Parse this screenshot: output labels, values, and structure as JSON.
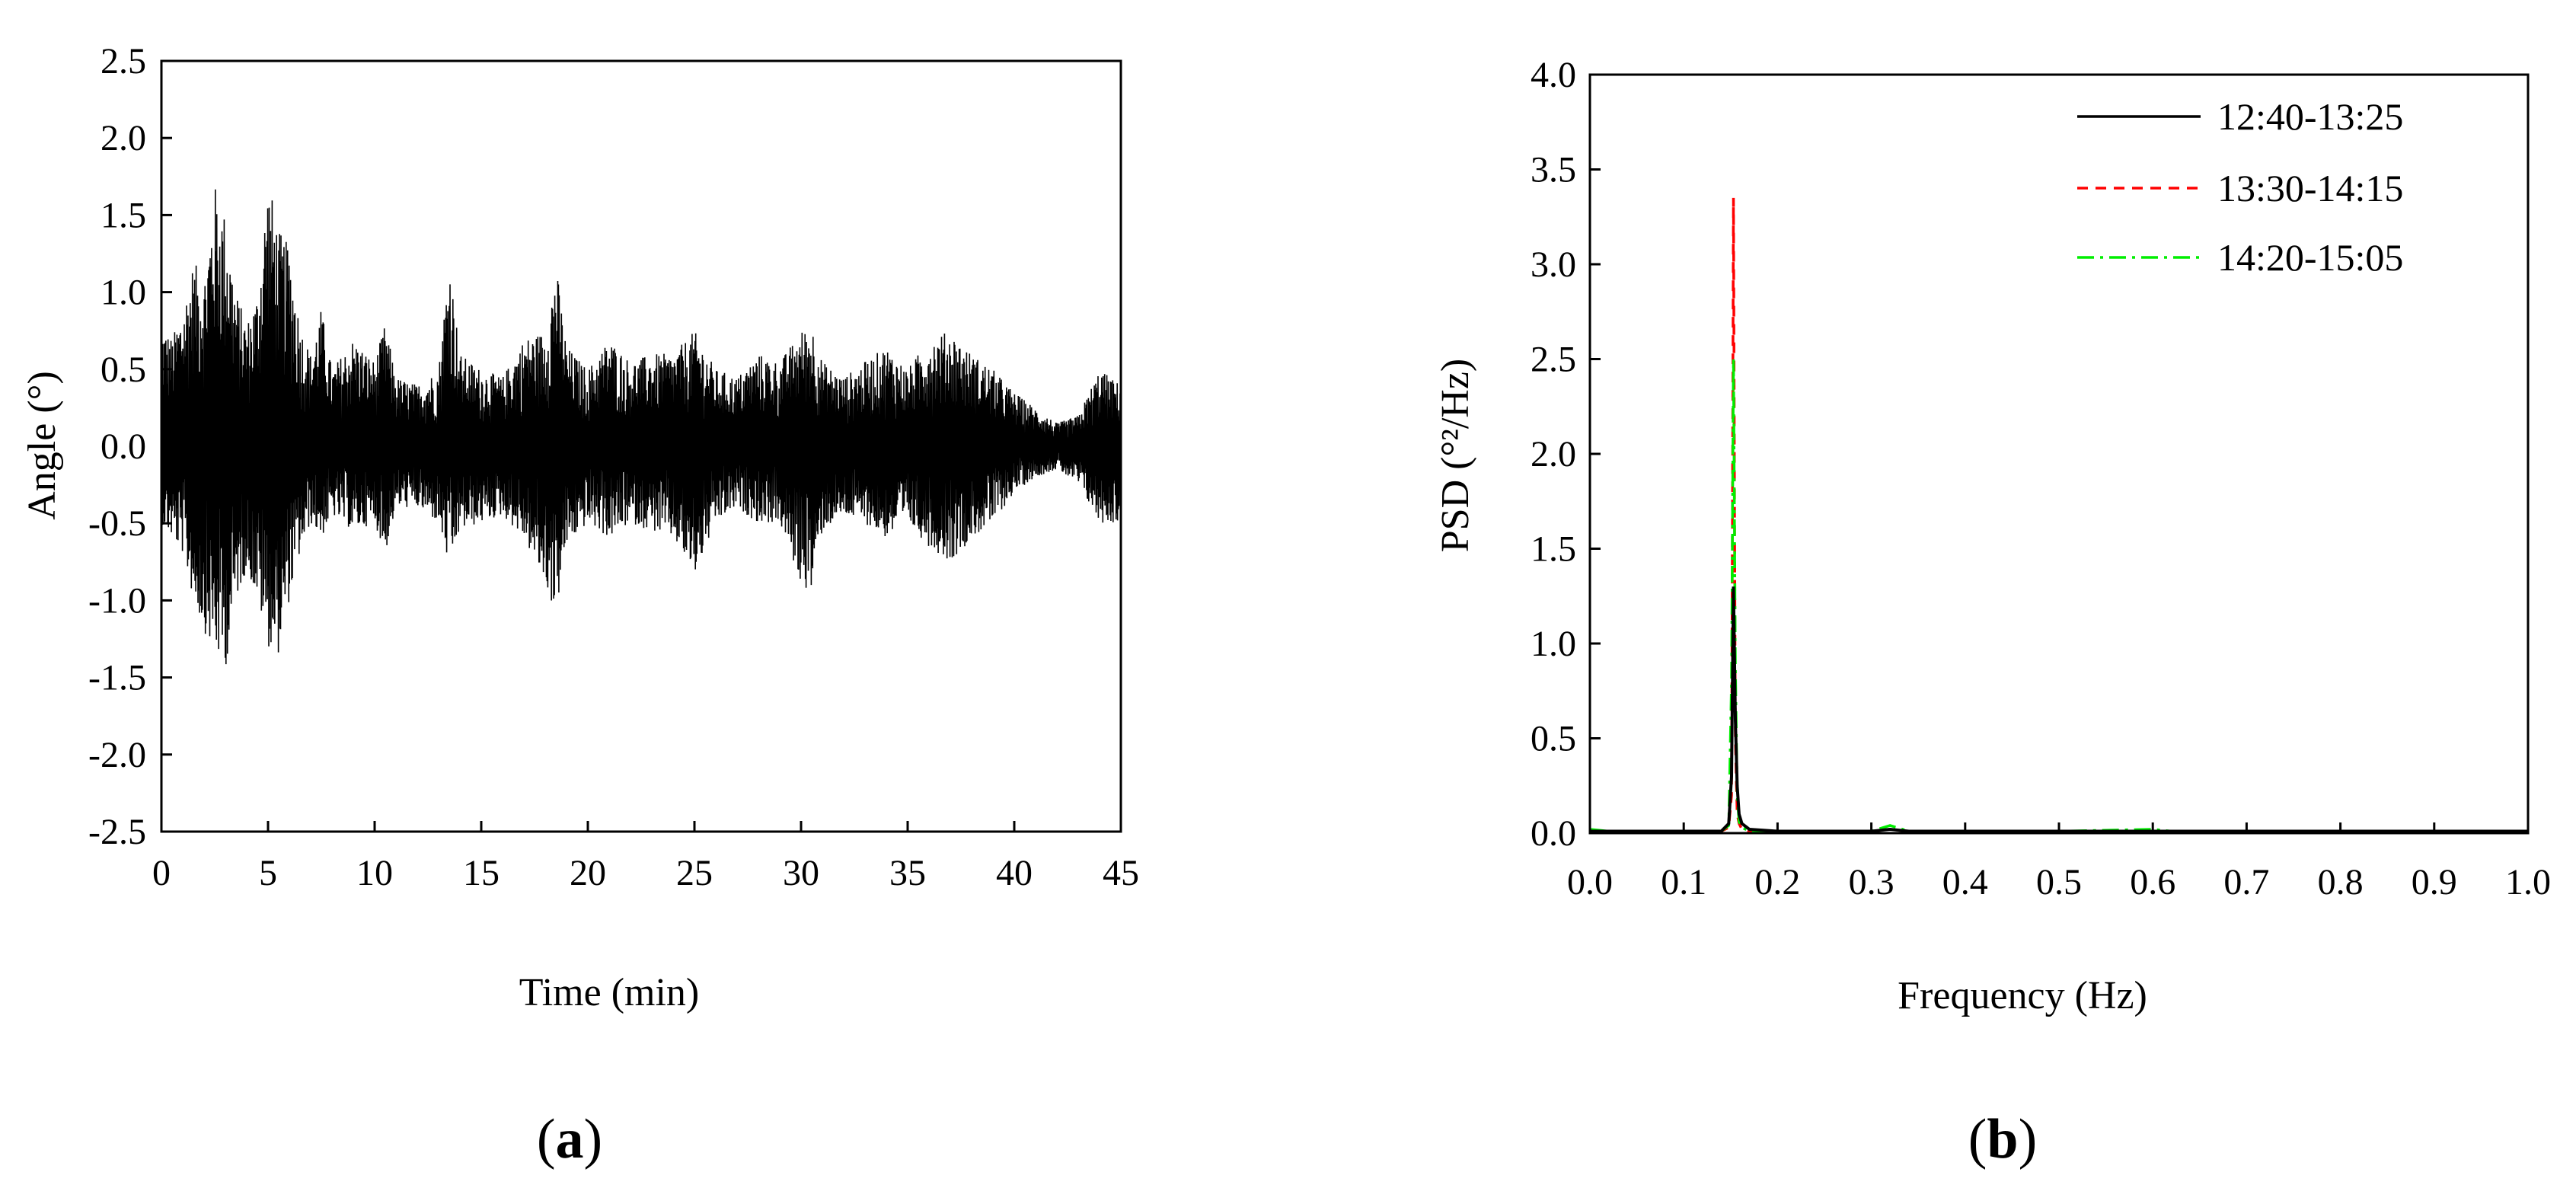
{
  "figure": {
    "panels": [
      {
        "label_open": "(",
        "label_letter": "a",
        "label_close": ")"
      },
      {
        "label_open": "(",
        "label_letter": "b",
        "label_close": ")"
      }
    ]
  },
  "chart_data": [
    {
      "type": "line",
      "title": "",
      "xlabel": "Time (min)",
      "ylabel": "Angle (°)",
      "xlim": [
        0,
        45
      ],
      "ylim": [
        -2.5,
        2.5
      ],
      "xticks": [
        0,
        5,
        10,
        15,
        20,
        25,
        30,
        35,
        40,
        45
      ],
      "yticks": [
        -2.5,
        -2.0,
        -1.5,
        -1.0,
        -0.5,
        0.0,
        0.5,
        1.0,
        1.5,
        2.0,
        2.5
      ],
      "xtick_labels": [
        "0",
        "5",
        "10",
        "15",
        "20",
        "25",
        "30",
        "35",
        "40",
        "45"
      ],
      "ytick_labels": [
        "-2.5",
        "-2.0",
        "-1.5",
        "-1.0",
        "-0.5",
        "0.0",
        "0.5",
        "1.0",
        "1.5",
        "2.0",
        "2.5"
      ],
      "grid": false,
      "line_color": "#000000",
      "series": [
        {
          "name": "",
          "envelope": {
            "x": [
              0,
              0.5,
              1,
              1.5,
              2,
              2.5,
              3,
              3.5,
              4,
              4.5,
              5,
              5.5,
              6,
              6.5,
              7,
              7.5,
              8,
              9,
              10,
              10.5,
              11,
              12,
              13,
              13.5,
              14,
              15,
              16,
              17,
              18,
              18.5,
              19,
              20,
              21,
              22,
              23,
              24,
              25,
              26,
              27,
              28,
              29,
              30,
              30.5,
              31,
              32,
              33,
              34,
              35,
              36,
              37,
              38,
              39,
              40,
              41,
              42,
              43,
              44,
              45
            ],
            "upper": [
              0.8,
              0.7,
              0.9,
              1.2,
              1.1,
              1.7,
              1.5,
              1.0,
              0.8,
              1.0,
              1.75,
              1.4,
              1.3,
              0.8,
              0.6,
              0.9,
              0.5,
              0.7,
              0.55,
              0.8,
              0.45,
              0.4,
              0.5,
              1.25,
              0.6,
              0.5,
              0.45,
              0.7,
              0.75,
              1.2,
              0.65,
              0.5,
              0.7,
              0.55,
              0.6,
              0.6,
              0.75,
              0.5,
              0.45,
              0.6,
              0.55,
              0.75,
              0.8,
              0.55,
              0.45,
              0.55,
              0.65,
              0.5,
              0.7,
              0.75,
              0.6,
              0.5,
              0.35,
              0.25,
              0.15,
              0.2,
              0.5,
              0.4
            ],
            "lower": [
              -0.5,
              -0.6,
              -0.7,
              -1.0,
              -1.2,
              -1.35,
              -1.45,
              -1.0,
              -0.8,
              -1.0,
              -1.3,
              -1.35,
              -1.0,
              -0.7,
              -0.5,
              -0.6,
              -0.45,
              -0.55,
              -0.5,
              -0.7,
              -0.4,
              -0.4,
              -0.5,
              -0.8,
              -0.55,
              -0.5,
              -0.45,
              -0.6,
              -0.9,
              -1.1,
              -0.65,
              -0.5,
              -0.6,
              -0.5,
              -0.55,
              -0.6,
              -0.85,
              -0.5,
              -0.4,
              -0.5,
              -0.5,
              -0.9,
              -0.95,
              -0.55,
              -0.45,
              -0.5,
              -0.6,
              -0.5,
              -0.65,
              -0.75,
              -0.6,
              -0.5,
              -0.3,
              -0.2,
              -0.15,
              -0.25,
              -0.5,
              -0.5
            ]
          }
        }
      ]
    },
    {
      "type": "line",
      "title": "",
      "xlabel": "Frequency (Hz)",
      "ylabel": "PSD (°²/Hz)",
      "xlim": [
        0,
        1
      ],
      "ylim": [
        0,
        4
      ],
      "xticks": [
        0,
        0.1,
        0.2,
        0.3,
        0.4,
        0.5,
        0.6,
        0.7,
        0.8,
        0.9,
        1.0
      ],
      "yticks": [
        0,
        0.5,
        1.0,
        1.5,
        2.0,
        2.5,
        3.0,
        3.5,
        4.0
      ],
      "xtick_labels": [
        "0.0",
        "0.1",
        "0.2",
        "0.3",
        "0.4",
        "0.5",
        "0.6",
        "0.7",
        "0.8",
        "0.9",
        "1.0"
      ],
      "ytick_labels": [
        "0.0",
        "0.5",
        "1.0",
        "1.5",
        "2.0",
        "2.5",
        "3.0",
        "3.5",
        "4.0"
      ],
      "grid": false,
      "legend_position": "top-right",
      "series": [
        {
          "name": "12:40-13:25",
          "color": "#000000",
          "style": "solid",
          "x": [
            0,
            0.02,
            0.05,
            0.1,
            0.14,
            0.148,
            0.151,
            0.153,
            0.155,
            0.157,
            0.159,
            0.162,
            0.17,
            0.2,
            0.3,
            0.32,
            0.34,
            0.5,
            0.6,
            0.62,
            0.8,
            1.0
          ],
          "y": [
            0.01,
            0.01,
            0.01,
            0.01,
            0.01,
            0.05,
            0.3,
            1.3,
            0.6,
            0.25,
            0.1,
            0.05,
            0.02,
            0.01,
            0.01,
            0.02,
            0.01,
            0.01,
            0.01,
            0.01,
            0.01,
            0.01
          ]
        },
        {
          "name": "13:30-14:15",
          "color": "#ff0000",
          "style": "dashed",
          "x": [
            0,
            0.02,
            0.05,
            0.1,
            0.14,
            0.148,
            0.151,
            0.153,
            0.155,
            0.157,
            0.159,
            0.162,
            0.17,
            0.2,
            0.3,
            0.32,
            0.34,
            0.5,
            0.6,
            0.62,
            0.8,
            1.0
          ],
          "y": [
            0.01,
            0.01,
            0.01,
            0.01,
            0.01,
            0.03,
            0.2,
            3.35,
            0.5,
            0.1,
            0.05,
            0.02,
            0.01,
            0.01,
            0.01,
            0.02,
            0.01,
            0.01,
            0.01,
            0.01,
            0.01,
            0.01
          ]
        },
        {
          "name": "14:20-15:05",
          "color": "#00ee00",
          "style": "dashdot",
          "x": [
            0,
            0.02,
            0.05,
            0.1,
            0.14,
            0.148,
            0.151,
            0.153,
            0.155,
            0.157,
            0.159,
            0.162,
            0.17,
            0.2,
            0.3,
            0.32,
            0.34,
            0.5,
            0.6,
            0.62,
            0.8,
            1.0
          ],
          "y": [
            0.02,
            0.01,
            0.01,
            0.01,
            0.01,
            0.04,
            0.8,
            2.5,
            0.9,
            0.2,
            0.06,
            0.03,
            0.01,
            0.01,
            0.01,
            0.04,
            0.01,
            0.01,
            0.02,
            0.01,
            0.01,
            0.01
          ]
        }
      ]
    }
  ]
}
